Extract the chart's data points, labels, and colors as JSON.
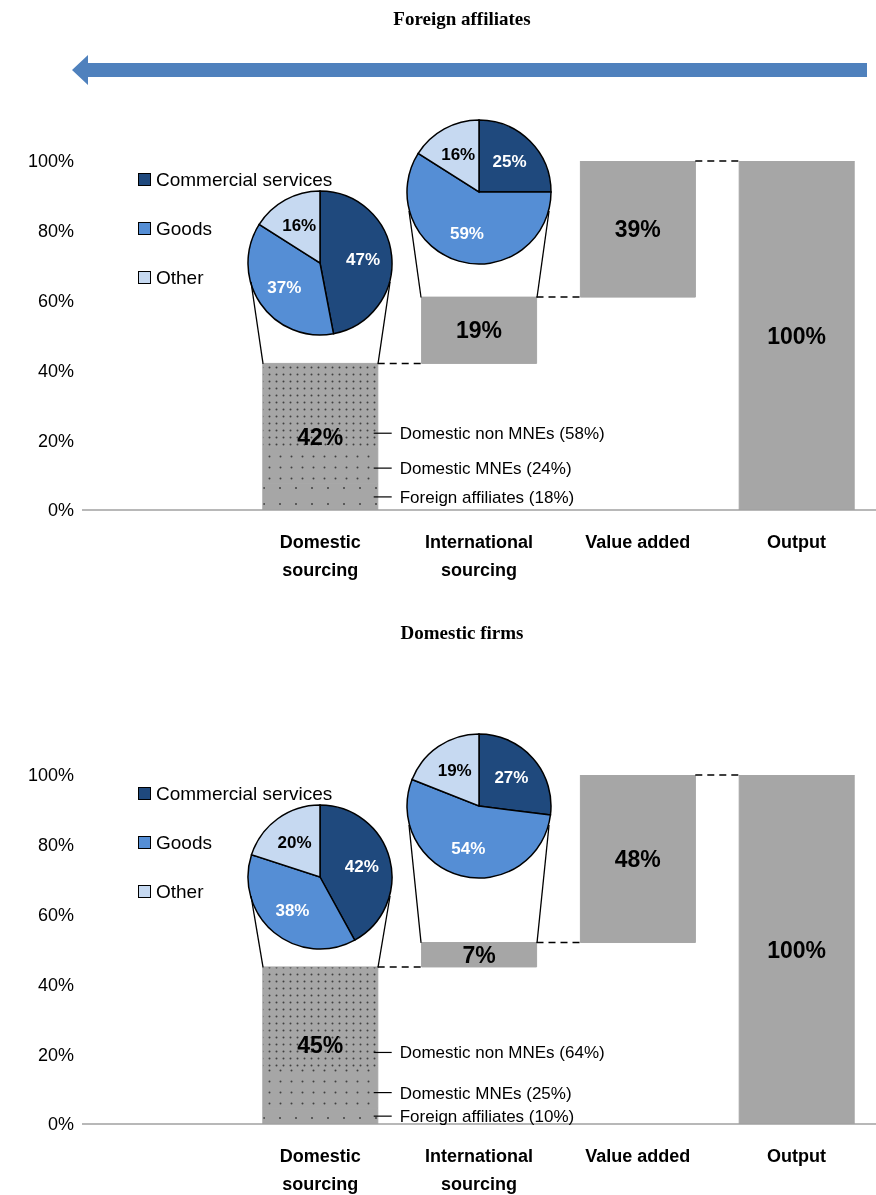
{
  "chart_data": [
    {
      "type": "bar",
      "title": "Foreign affiliates",
      "categories": [
        null,
        "Domestic sourcing",
        "International sourcing",
        "Value added",
        "Output"
      ],
      "series": [
        {
          "color": "#a6a6a6",
          "base": [
            null,
            0,
            42,
            61,
            0
          ],
          "values": [
            null,
            7.5,
            19,
            39,
            100
          ],
          "value_labels": [
            null,
            null,
            "19%",
            "39%",
            "100%"
          ]
        },
        {
          "color": "#a6a6a6",
          "base": [
            null,
            7.5,
            null,
            null,
            null
          ],
          "values": [
            null,
            10,
            null,
            null,
            null
          ]
        },
        {
          "color": "#a6a6a6",
          "base": [
            null,
            17.5,
            null,
            null,
            null
          ],
          "values": [
            null,
            24.5,
            null,
            null,
            null
          ]
        }
      ],
      "totals": [
        null,
        "42%",
        null,
        null,
        null
      ],
      "ylim": [
        0,
        100
      ],
      "yticks": [
        {
          "value": 0,
          "label": "0%"
        },
        {
          "value": 20,
          "label": "20%"
        },
        {
          "value": 40,
          "label": "40%"
        },
        {
          "value": 60,
          "label": "60%"
        },
        {
          "value": 80,
          "label": "80%"
        },
        {
          "value": 100,
          "label": "100%"
        }
      ],
      "annotations": [
        "Domestic non MNEs (58%)",
        "Domestic MNEs (24%)",
        "Foreign affiliates (18%)"
      ]
    },
    {
      "type": "pie",
      "categories": [
        "Commercial services",
        "Goods",
        "Other"
      ],
      "values": [
        47,
        37,
        16
      ],
      "value_labels": [
        "47%",
        "37%",
        "16%"
      ],
      "colors": [
        "#1f497d",
        "#558ed5",
        "#c6d9f1"
      ],
      "legend": "left"
    },
    {
      "type": "pie",
      "categories": [
        null,
        null,
        null
      ],
      "values": [
        25,
        59,
        16
      ],
      "value_labels": [
        "25%",
        "59%",
        "16%"
      ],
      "colors": [
        "#1f497d",
        "#558ed5",
        "#c6d9f1"
      ]
    },
    {
      "type": "bar",
      "title": "Domestic firms",
      "categories": [
        null,
        "Domestic sourcing",
        "International sourcing",
        "Value added",
        "Output"
      ],
      "series": [
        {
          "color": "#a6a6a6",
          "base": [
            null,
            0,
            45,
            52,
            0
          ],
          "values": [
            null,
            4.5,
            7,
            48,
            100
          ],
          "value_labels": [
            null,
            null,
            "7%",
            "48%",
            "100%"
          ]
        },
        {
          "color": "#a6a6a6",
          "base": [
            null,
            4.5,
            null,
            null,
            null
          ],
          "values": [
            null,
            11.5,
            null,
            null,
            null
          ]
        },
        {
          "color": "#a6a6a6",
          "base": [
            null,
            16,
            null,
            null,
            null
          ],
          "values": [
            null,
            29,
            null,
            null,
            null
          ]
        }
      ],
      "totals": [
        null,
        "45%",
        null,
        null,
        null
      ],
      "ylim": [
        0,
        100
      ],
      "yticks": [
        {
          "value": 0,
          "label": "0%"
        },
        {
          "value": 20,
          "label": "20%"
        },
        {
          "value": 40,
          "label": "40%"
        },
        {
          "value": 60,
          "label": "60%"
        },
        {
          "value": 80,
          "label": "80%"
        },
        {
          "value": 100,
          "label": "100%"
        }
      ],
      "annotations": [
        "Domestic non MNEs (64%)",
        "Domestic MNEs (25%)",
        "Foreign affiliates (10%)"
      ]
    },
    {
      "type": "pie",
      "categories": [
        "Commercial services",
        "Goods",
        "Other"
      ],
      "values": [
        42,
        38,
        20
      ],
      "value_labels": [
        "42%",
        "38%",
        "20%"
      ],
      "colors": [
        "#1f497d",
        "#558ed5",
        "#c6d9f1"
      ],
      "legend": "left"
    },
    {
      "type": "pie",
      "categories": [
        null,
        null,
        null
      ],
      "values": [
        27,
        54,
        19
      ],
      "value_labels": [
        "27%",
        "54%",
        "19%"
      ],
      "colors": [
        "#1f497d",
        "#558ed5",
        "#c6d9f1"
      ]
    }
  ]
}
